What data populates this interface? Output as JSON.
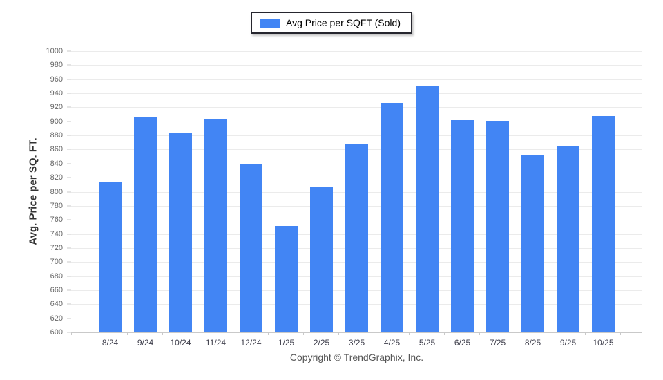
{
  "legend": {
    "label": "Avg Price per SQFT (Sold)",
    "swatch_color": "#4285f4"
  },
  "y_axis": {
    "title": "Avg. Price per SQ. FT."
  },
  "footer": {
    "copyright": "Copyright © TrendGraphix, Inc."
  },
  "chart_data": {
    "type": "bar",
    "title": "Avg Price per SQFT (Sold)",
    "categories": [
      "8/24",
      "9/24",
      "10/24",
      "11/24",
      "12/24",
      "1/25",
      "2/25",
      "3/25",
      "4/25",
      "5/25",
      "6/25",
      "7/25",
      "8/25",
      "9/25",
      "10/25"
    ],
    "values": [
      814,
      906,
      883,
      904,
      839,
      751,
      807,
      867,
      926,
      951,
      902,
      901,
      853,
      864,
      908
    ],
    "series_name": "Avg Price per SQFT (Sold)",
    "xlabel": "",
    "ylabel": "Avg. Price per SQ. FT.",
    "ylim": [
      600,
      1000
    ],
    "ytick_step": 20,
    "bar_color": "#4285f4",
    "grid": true,
    "legend_position": "top-center"
  }
}
